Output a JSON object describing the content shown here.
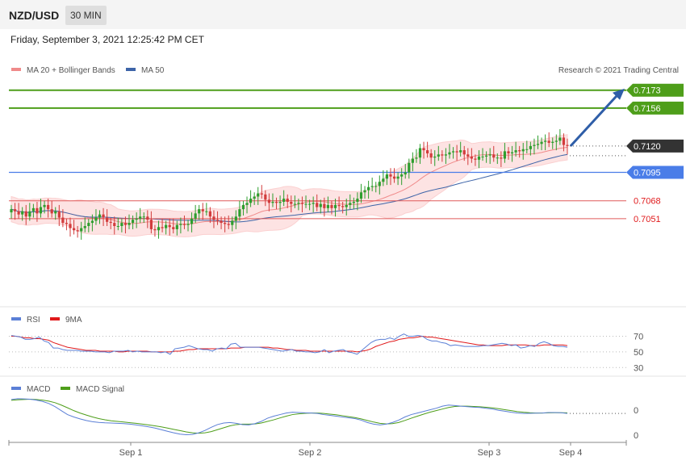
{
  "header": {
    "symbol": "NZD/USD",
    "timeframe": "30 MIN",
    "datetime": "Friday, September 3, 2021 12:25:42 PM CET"
  },
  "credit": "Research © 2021 Trading Central",
  "legend_main": [
    "MA 20 + Bollinger Bands",
    "MA 50"
  ],
  "legend_rsi": [
    "RSI",
    "9MA"
  ],
  "legend_macd": [
    "MACD",
    "MACD Signal"
  ],
  "colors": {
    "up": "#2e9e2e",
    "down": "#d23c3c",
    "resistance": "#4e9e1a",
    "support": "#4a7de8",
    "pivot": "#333333",
    "red_level": "#e05a5a",
    "ma50": "#3d64a8",
    "bb": "#f6a9a9",
    "rsi": "#5b7fd6",
    "rsi_ma": "#e0191b",
    "macd": "#5b7fd6",
    "macd_signal": "#4e9e1a"
  },
  "chart_data": [
    {
      "type": "candlestick",
      "title": "NZD/USD 30 MIN",
      "x_ticks": [
        "Sep 1",
        "Sep 2",
        "Sep 3",
        "Sep 4"
      ],
      "levels": [
        {
          "value": 0.7173,
          "label": "0.7173",
          "kind": "resistance"
        },
        {
          "value": 0.7156,
          "label": "0.7156",
          "kind": "resistance"
        },
        {
          "value": 0.712,
          "label": "0.7120",
          "kind": "pivot"
        },
        {
          "value": 0.7095,
          "label": "0.7095",
          "kind": "support"
        },
        {
          "value": 0.7068,
          "label": "0.7068",
          "kind": "red_level"
        },
        {
          "value": 0.7051,
          "label": "0.7051",
          "kind": "red_level"
        }
      ],
      "ylim": [
        0.6998,
        0.7182
      ],
      "close": [
        0.706,
        0.7058,
        0.7055,
        0.7058,
        0.7053,
        0.7058,
        0.7061,
        0.7056,
        0.7062,
        0.7064,
        0.706,
        0.7056,
        0.7058,
        0.7052,
        0.7047,
        0.7046,
        0.7042,
        0.704,
        0.7039,
        0.7042,
        0.7044,
        0.7047,
        0.7049,
        0.7052,
        0.7055,
        0.7052,
        0.7048,
        0.7047,
        0.7044,
        0.7044,
        0.7047,
        0.7045,
        0.7047,
        0.705,
        0.7051,
        0.7053,
        0.7053,
        0.705,
        0.7041,
        0.704,
        0.7043,
        0.7042,
        0.7045,
        0.7043,
        0.7041,
        0.7045,
        0.7046,
        0.7045,
        0.7046,
        0.7051,
        0.7056,
        0.706,
        0.7058,
        0.7058,
        0.7053,
        0.705,
        0.7049,
        0.7047,
        0.7046,
        0.7045,
        0.7049,
        0.7053,
        0.706,
        0.7064,
        0.7066,
        0.707,
        0.7072,
        0.7075,
        0.7074,
        0.7069,
        0.7066,
        0.7067,
        0.7066,
        0.7067,
        0.707,
        0.7067,
        0.7065,
        0.7065,
        0.7066,
        0.7065,
        0.7065,
        0.7065,
        0.7066,
        0.7062,
        0.7065,
        0.7061,
        0.7064,
        0.7061,
        0.7064,
        0.7063,
        0.7062,
        0.7064,
        0.7066,
        0.7067,
        0.707,
        0.7076,
        0.7078,
        0.7081,
        0.7082,
        0.7082,
        0.7086,
        0.7089,
        0.7093,
        0.7091,
        0.7089,
        0.7091,
        0.7093,
        0.7095,
        0.7104,
        0.7108,
        0.7109,
        0.7118,
        0.7116,
        0.7113,
        0.7109,
        0.711,
        0.7112,
        0.7111,
        0.7112,
        0.7114,
        0.7115,
        0.7114,
        0.7116,
        0.7112,
        0.711,
        0.7108,
        0.7107,
        0.711,
        0.711,
        0.7111,
        0.7112,
        0.7109,
        0.7109,
        0.7108,
        0.7115,
        0.7113,
        0.7114,
        0.7116,
        0.7115,
        0.7117,
        0.7117,
        0.712,
        0.7121,
        0.7122,
        0.7124,
        0.7125,
        0.7123,
        0.7124,
        0.7125,
        0.7128,
        0.7121,
        0.712
      ],
      "open": [
        0.7057,
        0.706,
        0.7058,
        0.7055,
        0.7058,
        0.7053,
        0.7058,
        0.7061,
        0.7056,
        0.7062,
        0.7064,
        0.706,
        0.7056,
        0.7058,
        0.7052,
        0.7047,
        0.7046,
        0.7042,
        0.704,
        0.7039,
        0.7042,
        0.7044,
        0.7047,
        0.7049,
        0.7052,
        0.7055,
        0.7052,
        0.7048,
        0.7047,
        0.7044,
        0.7044,
        0.7047,
        0.7045,
        0.7047,
        0.705,
        0.7051,
        0.7053,
        0.7053,
        0.705,
        0.7041,
        0.704,
        0.7043,
        0.7042,
        0.7045,
        0.7043,
        0.7041,
        0.7045,
        0.7046,
        0.7045,
        0.7046,
        0.7051,
        0.7056,
        0.706,
        0.7058,
        0.7058,
        0.7053,
        0.705,
        0.7049,
        0.7047,
        0.7046,
        0.7045,
        0.7049,
        0.7053,
        0.706,
        0.7064,
        0.7066,
        0.707,
        0.7072,
        0.7075,
        0.7074,
        0.7069,
        0.7066,
        0.7067,
        0.7066,
        0.7067,
        0.707,
        0.7067,
        0.7065,
        0.7065,
        0.7066,
        0.7065,
        0.7065,
        0.7065,
        0.7066,
        0.7062,
        0.7065,
        0.7061,
        0.7064,
        0.7061,
        0.7064,
        0.7063,
        0.7062,
        0.7064,
        0.7066,
        0.7067,
        0.707,
        0.7076,
        0.7078,
        0.7081,
        0.7082,
        0.7082,
        0.7086,
        0.7089,
        0.7093,
        0.7091,
        0.7089,
        0.7091,
        0.7093,
        0.7095,
        0.7104,
        0.7108,
        0.7109,
        0.7118,
        0.7116,
        0.7113,
        0.7109,
        0.711,
        0.7112,
        0.7111,
        0.7112,
        0.7114,
        0.7115,
        0.7114,
        0.7116,
        0.7112,
        0.711,
        0.7108,
        0.7107,
        0.711,
        0.711,
        0.7111,
        0.7112,
        0.7109,
        0.7109,
        0.7108,
        0.7115,
        0.7113,
        0.7114,
        0.7116,
        0.7115,
        0.7117,
        0.7117,
        0.712,
        0.7121,
        0.7122,
        0.7124,
        0.7125,
        0.7123,
        0.7124,
        0.7125,
        0.7128,
        0.7121
      ]
    },
    {
      "type": "line",
      "title": "RSI",
      "y_ticks": [
        70,
        50,
        30
      ],
      "ylim": [
        20,
        85
      ],
      "series": [
        {
          "name": "RSI",
          "values": [
            71,
            70,
            69,
            66,
            66,
            67,
            69,
            64,
            62,
            55,
            55,
            53,
            52,
            52,
            52,
            51,
            51,
            51,
            50,
            50,
            50,
            49,
            51,
            51,
            51,
            52,
            50,
            51,
            50,
            50,
            50,
            50,
            49,
            50,
            47,
            54,
            55,
            56,
            58,
            56,
            54,
            53,
            53,
            51,
            54,
            55,
            54,
            60,
            61,
            56,
            56,
            56,
            56,
            56,
            55,
            54,
            53,
            52,
            51,
            52,
            53,
            51,
            51,
            50,
            50,
            49,
            50,
            53,
            49,
            51,
            52,
            53,
            50,
            49,
            47,
            52,
            57,
            62,
            65,
            66,
            66,
            68,
            66,
            70,
            73,
            70,
            70,
            71,
            70,
            66,
            64,
            64,
            62,
            61,
            58,
            59,
            58,
            57,
            57,
            57,
            57,
            58,
            58,
            59,
            60,
            61,
            60,
            58,
            59,
            55,
            56,
            58,
            57,
            61,
            63,
            61,
            58,
            57,
            57,
            56
          ]
        },
        {
          "name": "9MA",
          "values": [
            70,
            70,
            69,
            68,
            68,
            67,
            67,
            66,
            65,
            62,
            60,
            58,
            56,
            55,
            54,
            53,
            52,
            52,
            52,
            51,
            51,
            51,
            51,
            50,
            50,
            51,
            51,
            51,
            51,
            51,
            50,
            50,
            50,
            50,
            50,
            51,
            51,
            52,
            53,
            53,
            54,
            54,
            54,
            54,
            54,
            54,
            54,
            55,
            55,
            55,
            56,
            56,
            56,
            56,
            56,
            56,
            55,
            55,
            54,
            53,
            53,
            52,
            52,
            52,
            51,
            51,
            51,
            51,
            51,
            51,
            51,
            51,
            51,
            51,
            50,
            51,
            52,
            54,
            57,
            59,
            61,
            63,
            64,
            66,
            67,
            68,
            68,
            69,
            70,
            69,
            69,
            68,
            67,
            66,
            65,
            64,
            63,
            62,
            61,
            60,
            59,
            59,
            58,
            58,
            58,
            58,
            59,
            59,
            59,
            59,
            59,
            58,
            58,
            58,
            59,
            59,
            59,
            59,
            59,
            58
          ]
        }
      ]
    },
    {
      "type": "line",
      "title": "MACD",
      "y_ticks": [
        "0",
        "0"
      ],
      "ylim": [
        -1.6,
        1.35
      ],
      "series": [
        {
          "name": "MACD",
          "values": [
            1.0,
            1.05,
            1.04,
            1.02,
            0.96,
            0.88,
            0.75,
            0.55,
            0.3,
            0.05,
            -0.1,
            -0.22,
            -0.32,
            -0.4,
            -0.44,
            -0.47,
            -0.48,
            -0.5,
            -0.52,
            -0.55,
            -0.6,
            -0.66,
            -0.72,
            -0.8,
            -0.9,
            -1.0,
            -1.1,
            -1.18,
            -1.22,
            -1.2,
            -1.1,
            -0.95,
            -0.75,
            -0.58,
            -0.48,
            -0.45,
            -0.5,
            -0.58,
            -0.6,
            -0.52,
            -0.38,
            -0.18,
            -0.05,
            0.05,
            0.15,
            0.2,
            0.18,
            0.16,
            0.15,
            0.12,
            0.05,
            0.0,
            -0.05,
            -0.1,
            -0.15,
            -0.2,
            -0.3,
            -0.45,
            -0.55,
            -0.6,
            -0.55,
            -0.45,
            -0.3,
            -0.1,
            0.05,
            0.15,
            0.25,
            0.35,
            0.45,
            0.58,
            0.65,
            0.62,
            0.58,
            0.55,
            0.52,
            0.5,
            0.45,
            0.4,
            0.32,
            0.26,
            0.2,
            0.15,
            0.12,
            0.13,
            0.14,
            0.15,
            0.18,
            0.18,
            0.17,
            0.12
          ]
        },
        {
          "name": "MACD Signal",
          "values": [
            0.95,
            0.98,
            1.0,
            1.02,
            1.0,
            0.96,
            0.9,
            0.8,
            0.65,
            0.48,
            0.3,
            0.15,
            0.02,
            -0.1,
            -0.2,
            -0.28,
            -0.34,
            -0.38,
            -0.42,
            -0.46,
            -0.5,
            -0.55,
            -0.6,
            -0.66,
            -0.72,
            -0.8,
            -0.88,
            -0.96,
            -1.04,
            -1.1,
            -1.12,
            -1.1,
            -1.02,
            -0.9,
            -0.78,
            -0.66,
            -0.58,
            -0.55,
            -0.55,
            -0.54,
            -0.48,
            -0.38,
            -0.28,
            -0.16,
            -0.05,
            0.05,
            0.1,
            0.13,
            0.15,
            0.15,
            0.12,
            0.08,
            0.04,
            -0.02,
            -0.08,
            -0.14,
            -0.22,
            -0.32,
            -0.42,
            -0.5,
            -0.54,
            -0.52,
            -0.45,
            -0.32,
            -0.18,
            -0.05,
            0.08,
            0.2,
            0.3,
            0.4,
            0.5,
            0.56,
            0.58,
            0.58,
            0.56,
            0.54,
            0.51,
            0.47,
            0.42,
            0.36,
            0.3,
            0.24,
            0.2,
            0.17,
            0.15,
            0.15,
            0.16,
            0.17,
            0.17,
            0.16
          ]
        }
      ]
    }
  ]
}
